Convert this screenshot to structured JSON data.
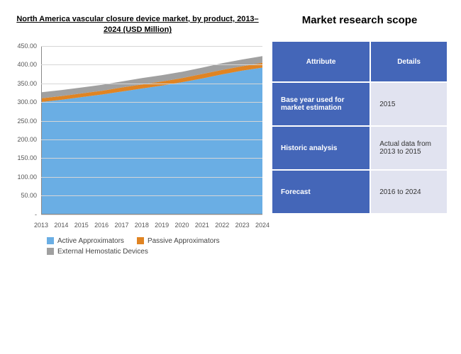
{
  "chart": {
    "type": "stacked-area",
    "title": "North America vascular closure device market, by product, 2013–2024 (USD Million)",
    "title_fontsize": 11,
    "title_weight": "bold",
    "ylim": [
      0,
      450
    ],
    "ytick_step": 50,
    "yticks": [
      "-",
      "50.00",
      "100.00",
      "150.00",
      "200.00",
      "250.00",
      "300.00",
      "350.00",
      "400.00",
      "450.00"
    ],
    "categories": [
      "2013",
      "2014",
      "2015",
      "2016",
      "2017",
      "2018",
      "2019",
      "2020",
      "2021",
      "2022",
      "2023",
      "2024"
    ],
    "series": [
      {
        "name": "Active Approximators",
        "color": "#6aaee4",
        "values": [
          300,
          306,
          313,
          320,
          328,
          336,
          344,
          353,
          363,
          374,
          384,
          392
        ]
      },
      {
        "name": "Passive Approximators",
        "color": "#e08423",
        "values": [
          10,
          10,
          10,
          10,
          11,
          11,
          11,
          11,
          12,
          12,
          12,
          13
        ]
      },
      {
        "name": "External Hemostatic Devices",
        "color": "#a0a0a0",
        "values": [
          16,
          16,
          16,
          16,
          16,
          17,
          17,
          17,
          17,
          18,
          18,
          18
        ]
      }
    ],
    "background_color": "#ffffff",
    "grid_color": "#d6d6d6",
    "label_fontsize": 9,
    "legend_fontsize": 10
  },
  "scope": {
    "title": "Market research scope",
    "header_bg": "#4466b8",
    "attr_bg": "#4466b8",
    "detail_bg": "#e1e3f0",
    "header_text_color": "#ffffff",
    "attr_text_color": "#ffffff",
    "detail_text_color": "#333333",
    "columns": [
      "Attribute",
      "Details"
    ],
    "rows": [
      {
        "attr": "Base year used for market estimation",
        "detail": "2015"
      },
      {
        "attr": "Historic analysis",
        "detail": "Actual data from 2013 to 2015"
      },
      {
        "attr": "Forecast",
        "detail": "2016 to 2024"
      }
    ]
  }
}
